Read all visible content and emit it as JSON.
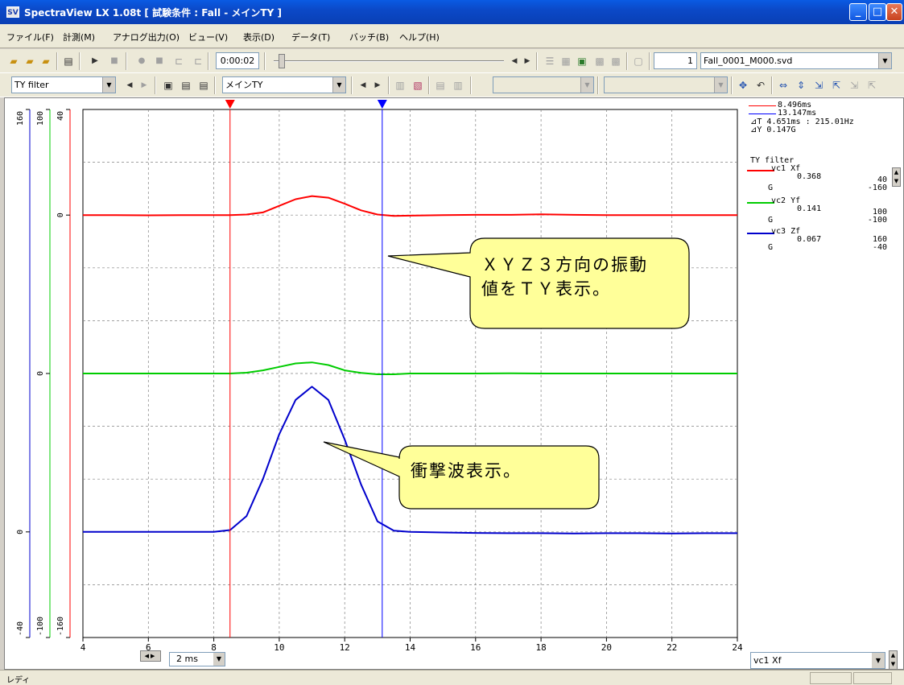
{
  "window": {
    "title": "SpectraView LX 1.08t [ 試験条件 : Fall - メインTY ]",
    "logo": "SV",
    "controls": [
      "minimize-icon",
      "maximize-icon",
      "close-icon"
    ]
  },
  "menu": [
    "ファイル(F)",
    "計測(M)",
    "アナログ出力(O)",
    "ビュー(V)",
    "表示(D)",
    "データ(T)",
    "バッチ(B)",
    "ヘルプ(H)"
  ],
  "toolbar1": {
    "time": "0:00:02",
    "frame_number": "1",
    "file": "Fall_0001_M000.svd",
    "slider_fraction": 0.02
  },
  "toolbar2": {
    "filter": "TY filter",
    "view": "メインTY",
    "combo3": "",
    "combo4": ""
  },
  "plot": {
    "background": "#ffffff",
    "grid_color": "#808080",
    "xlim": [
      4,
      24
    ],
    "x_ticks": [
      "4",
      "6",
      "8",
      "10",
      "12",
      "14",
      "16",
      "18",
      "20",
      "22",
      "24"
    ],
    "timebase": "2 ms",
    "cursor_a": {
      "x": 8.496,
      "color": "#ff0000"
    },
    "cursor_b": {
      "x": 13.147,
      "color": "#0000ff"
    }
  },
  "axes": [
    {
      "color": "#0000cc",
      "top": "160",
      "bottom": "-40",
      "zero": "0"
    },
    {
      "color": "#00cc00",
      "top": "100",
      "bottom": "-100",
      "zero": "0"
    },
    {
      "color": "#ff0000",
      "top": "40",
      "bottom": "-160",
      "zero": "0"
    }
  ],
  "chart_data": {
    "type": "line",
    "xlabel": "",
    "xlim": [
      4,
      24
    ],
    "series": [
      {
        "name": "vc1 Xf",
        "color": "#ff0000",
        "ylim": [
          -160,
          40
        ],
        "x": [
          4,
          5,
          6,
          7,
          8,
          8.5,
          9,
          9.5,
          10,
          10.5,
          11,
          11.5,
          12,
          12.5,
          13,
          13.5,
          14,
          15,
          16,
          17,
          18,
          19,
          20,
          21,
          22,
          23,
          24
        ],
        "y": [
          0,
          0,
          -0.1,
          0,
          0,
          0,
          0.2,
          1,
          3.5,
          6,
          7.2,
          6.6,
          4.3,
          1.8,
          0.2,
          -0.3,
          -0.2,
          0,
          0.1,
          0.1,
          0.3,
          0.1,
          0,
          0,
          0,
          0,
          0
        ]
      },
      {
        "name": "vc2 Yf",
        "color": "#00cc00",
        "ylim": [
          -100,
          100
        ],
        "x": [
          4,
          5,
          6,
          7,
          8,
          8.5,
          9,
          9.5,
          10,
          10.5,
          11,
          11.5,
          12,
          12.5,
          13,
          13.5,
          14,
          15,
          16,
          17,
          18,
          19,
          20,
          21,
          22,
          23,
          24
        ],
        "y": [
          0,
          0,
          0,
          0,
          0,
          0,
          0.3,
          1.2,
          2.5,
          3.8,
          4.2,
          3.2,
          1.2,
          0.2,
          -0.3,
          -0.3,
          0,
          0,
          0,
          0.1,
          0,
          0,
          0,
          0,
          0,
          0,
          0
        ]
      },
      {
        "name": "vc3 Zf",
        "color": "#0000cc",
        "ylim": [
          -40,
          160
        ],
        "x": [
          4,
          5,
          6,
          7,
          8,
          8.5,
          9,
          9.5,
          10,
          10.5,
          11,
          11.5,
          12,
          12.5,
          13,
          13.5,
          14,
          15,
          16,
          17,
          18,
          19,
          20,
          21,
          22,
          23,
          24
        ],
        "y": [
          0,
          0,
          0,
          0,
          0,
          0.7,
          6,
          20,
          37,
          50,
          55,
          50,
          35,
          18,
          4,
          0.5,
          0,
          -0.2,
          -0.4,
          -0.5,
          -0.5,
          -0.6,
          -0.5,
          -0.5,
          -0.6,
          -0.5,
          -0.5
        ]
      }
    ]
  },
  "legend": {
    "cursor_a": "8.496ms",
    "cursor_b": "13.147ms",
    "delta_t": "⊿T 4.651ms : 215.01Hz",
    "delta_y": "⊿Y 0.147G",
    "filter_name": "TY filter",
    "channels": [
      {
        "name": "vc1 Xf",
        "color": "#ff0000",
        "value": "0.368",
        "unit": "G",
        "max": "40",
        "min": "-160"
      },
      {
        "name": "vc2 Yf",
        "color": "#00cc00",
        "value": "0.141",
        "unit": "G",
        "max": "100",
        "min": "-100"
      },
      {
        "name": "vc3 Zf",
        "color": "#0000cc",
        "value": "0.067",
        "unit": "G",
        "max": "160",
        "min": "-40"
      }
    ]
  },
  "callouts": [
    {
      "text": "ＸＹＺ３方向の振動\n値をＴＹ表示。"
    },
    {
      "text": "衝撃波表示。"
    }
  ],
  "channel_select": "vc1 Xf",
  "status": "レディ",
  "colors": {
    "callout_fill": "#ffff99",
    "title_bar": "#0a4ec8"
  }
}
